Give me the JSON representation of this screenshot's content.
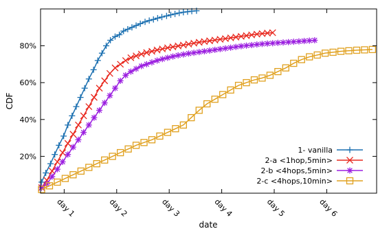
{
  "chart_data": {
    "type": "line",
    "title": "",
    "xlabel": "date",
    "ylabel": "CDF",
    "xlim": [
      0.55,
      6.95
    ],
    "ylim": [
      0,
      100
    ],
    "x_ticks": [
      1,
      2,
      3,
      4,
      5,
      6
    ],
    "x_tick_labels": [
      "day 1",
      "day 2",
      "day 3",
      "day 4",
      "day 5",
      "day 6"
    ],
    "y_ticks": [
      20,
      40,
      60,
      80
    ],
    "y_tick_labels": [
      "20%",
      "40%",
      "60%",
      "80%"
    ],
    "grid": false,
    "legend_position": "bottom-right",
    "series": [
      {
        "name": "1- vanilla",
        "color": "#1a6fb0",
        "marker": "plus",
        "x": [
          0.57,
          0.65,
          0.74,
          0.82,
          0.9,
          0.99,
          1.07,
          1.15,
          1.23,
          1.31,
          1.39,
          1.47,
          1.56,
          1.64,
          1.72,
          1.8,
          1.88,
          1.97,
          2.05,
          2.13,
          2.21,
          2.29,
          2.37,
          2.45,
          2.54,
          2.62,
          2.7,
          2.78,
          2.86,
          2.95,
          3.03,
          3.11,
          3.19,
          3.27,
          3.35,
          3.43,
          3.52
        ],
        "y": [
          6,
          11,
          16,
          21,
          26,
          31,
          37,
          42,
          47,
          52,
          57,
          62,
          67,
          72,
          76,
          80,
          83,
          85,
          86,
          88,
          89,
          90,
          91,
          92,
          93,
          93.7,
          94.3,
          95,
          95.6,
          96.2,
          96.8,
          97.3,
          97.8,
          98.2,
          98.5,
          98.8,
          99
        ]
      },
      {
        "name": "2-a <1hop,5min>",
        "color": "#e8281e",
        "marker": "x",
        "x": [
          0.57,
          0.67,
          0.77,
          0.87,
          0.97,
          1.07,
          1.17,
          1.27,
          1.37,
          1.47,
          1.57,
          1.67,
          1.77,
          1.87,
          1.97,
          2.07,
          2.17,
          2.27,
          2.37,
          2.47,
          2.57,
          2.67,
          2.77,
          2.87,
          2.97,
          3.07,
          3.17,
          3.27,
          3.37,
          3.47,
          3.57,
          3.67,
          3.77,
          3.87,
          3.97,
          4.07,
          4.17,
          4.27,
          4.37,
          4.47,
          4.57,
          4.67,
          4.77,
          4.87,
          4.97
        ],
        "y": [
          3,
          7,
          12,
          17,
          22,
          27,
          32,
          37,
          42,
          47,
          52,
          57,
          61,
          65,
          68,
          70,
          72,
          73.5,
          74.5,
          75.5,
          76.3,
          77,
          77.7,
          78.3,
          78.9,
          79.4,
          79.9,
          80.4,
          80.9,
          81.4,
          81.9,
          82.3,
          82.7,
          83.1,
          83.5,
          83.9,
          84.3,
          84.7,
          85.1,
          85.5,
          85.9,
          86.3,
          86.6,
          86.9,
          87.1
        ]
      },
      {
        "name": "2-b <4hops,5min>",
        "color": "#9b1ee0",
        "marker": "star",
        "x": [
          0.57,
          0.67,
          0.77,
          0.87,
          0.97,
          1.07,
          1.17,
          1.27,
          1.37,
          1.47,
          1.57,
          1.67,
          1.77,
          1.87,
          1.97,
          2.07,
          2.17,
          2.27,
          2.37,
          2.47,
          2.57,
          2.67,
          2.77,
          2.87,
          2.97,
          3.07,
          3.17,
          3.27,
          3.37,
          3.47,
          3.57,
          3.67,
          3.77,
          3.87,
          3.97,
          4.07,
          4.17,
          4.27,
          4.37,
          4.47,
          4.57,
          4.67,
          4.77,
          4.87,
          4.97,
          5.07,
          5.17,
          5.27,
          5.37,
          5.47,
          5.57,
          5.67,
          5.77
        ],
        "y": [
          3,
          5,
          9,
          13,
          17,
          21,
          25,
          29,
          33,
          37,
          41,
          45,
          49,
          53,
          57,
          61,
          64,
          66,
          67.5,
          69,
          70,
          71,
          72,
          72.8,
          73.5,
          74.2,
          74.8,
          75.3,
          75.8,
          76.2,
          76.6,
          77,
          77.4,
          77.8,
          78.2,
          78.6,
          79,
          79.4,
          79.8,
          80.1,
          80.4,
          80.7,
          81,
          81.2,
          81.4,
          81.6,
          81.8,
          82,
          82.2,
          82.4,
          82.6,
          82.8,
          83
        ]
      },
      {
        "name": "2-c <4hops,10min>",
        "color": "#e0a01e",
        "marker": "square",
        "x": [
          0.57,
          0.72,
          0.87,
          1.02,
          1.17,
          1.32,
          1.47,
          1.62,
          1.77,
          1.92,
          2.07,
          2.22,
          2.37,
          2.52,
          2.67,
          2.82,
          2.97,
          3.12,
          3.27,
          3.42,
          3.57,
          3.72,
          3.87,
          4.02,
          4.17,
          4.32,
          4.47,
          4.62,
          4.77,
          4.92,
          5.07,
          5.22,
          5.37,
          5.52,
          5.67,
          5.82,
          5.97,
          6.12,
          6.27,
          6.42,
          6.57,
          6.72,
          6.87
        ],
        "y": [
          2,
          4,
          6,
          8,
          10,
          12,
          14,
          16,
          18,
          20,
          22,
          24,
          26,
          27.5,
          29,
          31,
          33,
          35,
          37,
          41,
          45,
          48.5,
          51,
          53.5,
          56,
          58.5,
          60,
          61.5,
          62.5,
          64,
          66,
          68,
          70.5,
          72.5,
          74,
          75,
          76,
          76.5,
          77,
          77.3,
          77.6,
          77.8,
          78
        ]
      }
    ]
  }
}
